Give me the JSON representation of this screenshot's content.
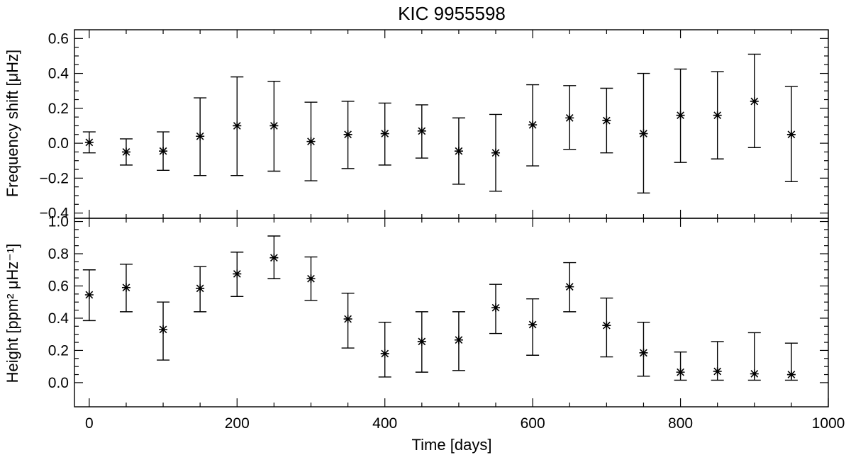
{
  "chart_data": {
    "type": "scatter",
    "title": "KIC 9955598",
    "xlabel": "Time [days]",
    "x_ticks": [
      "0",
      "200",
      "400",
      "600",
      "800",
      "1000"
    ],
    "xlim": [
      -20,
      1000
    ],
    "panels": [
      {
        "name": "frequency-shift",
        "ylabel": "Frequency shift [μHz]",
        "ylim": [
          -0.43,
          0.65
        ],
        "y_ticks": [
          -0.4,
          -0.2,
          0.0,
          0.2,
          0.4,
          0.6
        ],
        "y_tick_labels": [
          "−0.4",
          "−0.2",
          "0.0",
          "0.2",
          "0.4",
          "0.6"
        ],
        "points": [
          {
            "x": 0,
            "y": 0.005,
            "lo": -0.055,
            "hi": 0.065
          },
          {
            "x": 50,
            "y": -0.05,
            "lo": -0.125,
            "hi": 0.025
          },
          {
            "x": 100,
            "y": -0.045,
            "lo": -0.155,
            "hi": 0.065
          },
          {
            "x": 150,
            "y": 0.04,
            "lo": -0.185,
            "hi": 0.26
          },
          {
            "x": 200,
            "y": 0.1,
            "lo": -0.185,
            "hi": 0.38
          },
          {
            "x": 250,
            "y": 0.1,
            "lo": -0.16,
            "hi": 0.355
          },
          {
            "x": 300,
            "y": 0.01,
            "lo": -0.215,
            "hi": 0.235
          },
          {
            "x": 350,
            "y": 0.05,
            "lo": -0.145,
            "hi": 0.24
          },
          {
            "x": 400,
            "y": 0.055,
            "lo": -0.125,
            "hi": 0.23
          },
          {
            "x": 450,
            "y": 0.07,
            "lo": -0.085,
            "hi": 0.22
          },
          {
            "x": 500,
            "y": -0.045,
            "lo": -0.235,
            "hi": 0.145
          },
          {
            "x": 550,
            "y": -0.055,
            "lo": -0.275,
            "hi": 0.165
          },
          {
            "x": 600,
            "y": 0.105,
            "lo": -0.13,
            "hi": 0.335
          },
          {
            "x": 650,
            "y": 0.145,
            "lo": -0.035,
            "hi": 0.33
          },
          {
            "x": 700,
            "y": 0.13,
            "lo": -0.055,
            "hi": 0.315
          },
          {
            "x": 750,
            "y": 0.055,
            "lo": -0.285,
            "hi": 0.4
          },
          {
            "x": 800,
            "y": 0.16,
            "lo": -0.11,
            "hi": 0.425
          },
          {
            "x": 850,
            "y": 0.16,
            "lo": -0.09,
            "hi": 0.41
          },
          {
            "x": 900,
            "y": 0.24,
            "lo": -0.025,
            "hi": 0.51
          },
          {
            "x": 950,
            "y": 0.05,
            "lo": -0.22,
            "hi": 0.325
          }
        ]
      },
      {
        "name": "height",
        "ylabel": "Height [ppm² μHz⁻¹]",
        "ylim": [
          -0.15,
          1.02
        ],
        "y_ticks": [
          0.0,
          0.2,
          0.4,
          0.6,
          0.8,
          1.0
        ],
        "y_tick_labels": [
          "0.0",
          "0.2",
          "0.4",
          "0.6",
          "0.8",
          "1.0"
        ],
        "points": [
          {
            "x": 0,
            "y": 0.545,
            "lo": 0.385,
            "hi": 0.7
          },
          {
            "x": 50,
            "y": 0.59,
            "lo": 0.44,
            "hi": 0.735
          },
          {
            "x": 100,
            "y": 0.33,
            "lo": 0.14,
            "hi": 0.5
          },
          {
            "x": 150,
            "y": 0.585,
            "lo": 0.44,
            "hi": 0.72
          },
          {
            "x": 200,
            "y": 0.675,
            "lo": 0.535,
            "hi": 0.81
          },
          {
            "x": 250,
            "y": 0.775,
            "lo": 0.645,
            "hi": 0.91
          },
          {
            "x": 300,
            "y": 0.645,
            "lo": 0.51,
            "hi": 0.78
          },
          {
            "x": 350,
            "y": 0.395,
            "lo": 0.215,
            "hi": 0.555
          },
          {
            "x": 400,
            "y": 0.18,
            "lo": 0.035,
            "hi": 0.375
          },
          {
            "x": 450,
            "y": 0.255,
            "lo": 0.065,
            "hi": 0.44
          },
          {
            "x": 500,
            "y": 0.265,
            "lo": 0.075,
            "hi": 0.44
          },
          {
            "x": 550,
            "y": 0.465,
            "lo": 0.305,
            "hi": 0.61
          },
          {
            "x": 600,
            "y": 0.36,
            "lo": 0.17,
            "hi": 0.52
          },
          {
            "x": 650,
            "y": 0.595,
            "lo": 0.44,
            "hi": 0.745
          },
          {
            "x": 700,
            "y": 0.355,
            "lo": 0.16,
            "hi": 0.525
          },
          {
            "x": 750,
            "y": 0.185,
            "lo": 0.04,
            "hi": 0.375
          },
          {
            "x": 800,
            "y": 0.065,
            "lo": 0.015,
            "hi": 0.19
          },
          {
            "x": 850,
            "y": 0.07,
            "lo": 0.015,
            "hi": 0.255
          },
          {
            "x": 900,
            "y": 0.055,
            "lo": 0.015,
            "hi": 0.31
          },
          {
            "x": 950,
            "y": 0.05,
            "lo": 0.015,
            "hi": 0.245
          }
        ]
      }
    ]
  }
}
